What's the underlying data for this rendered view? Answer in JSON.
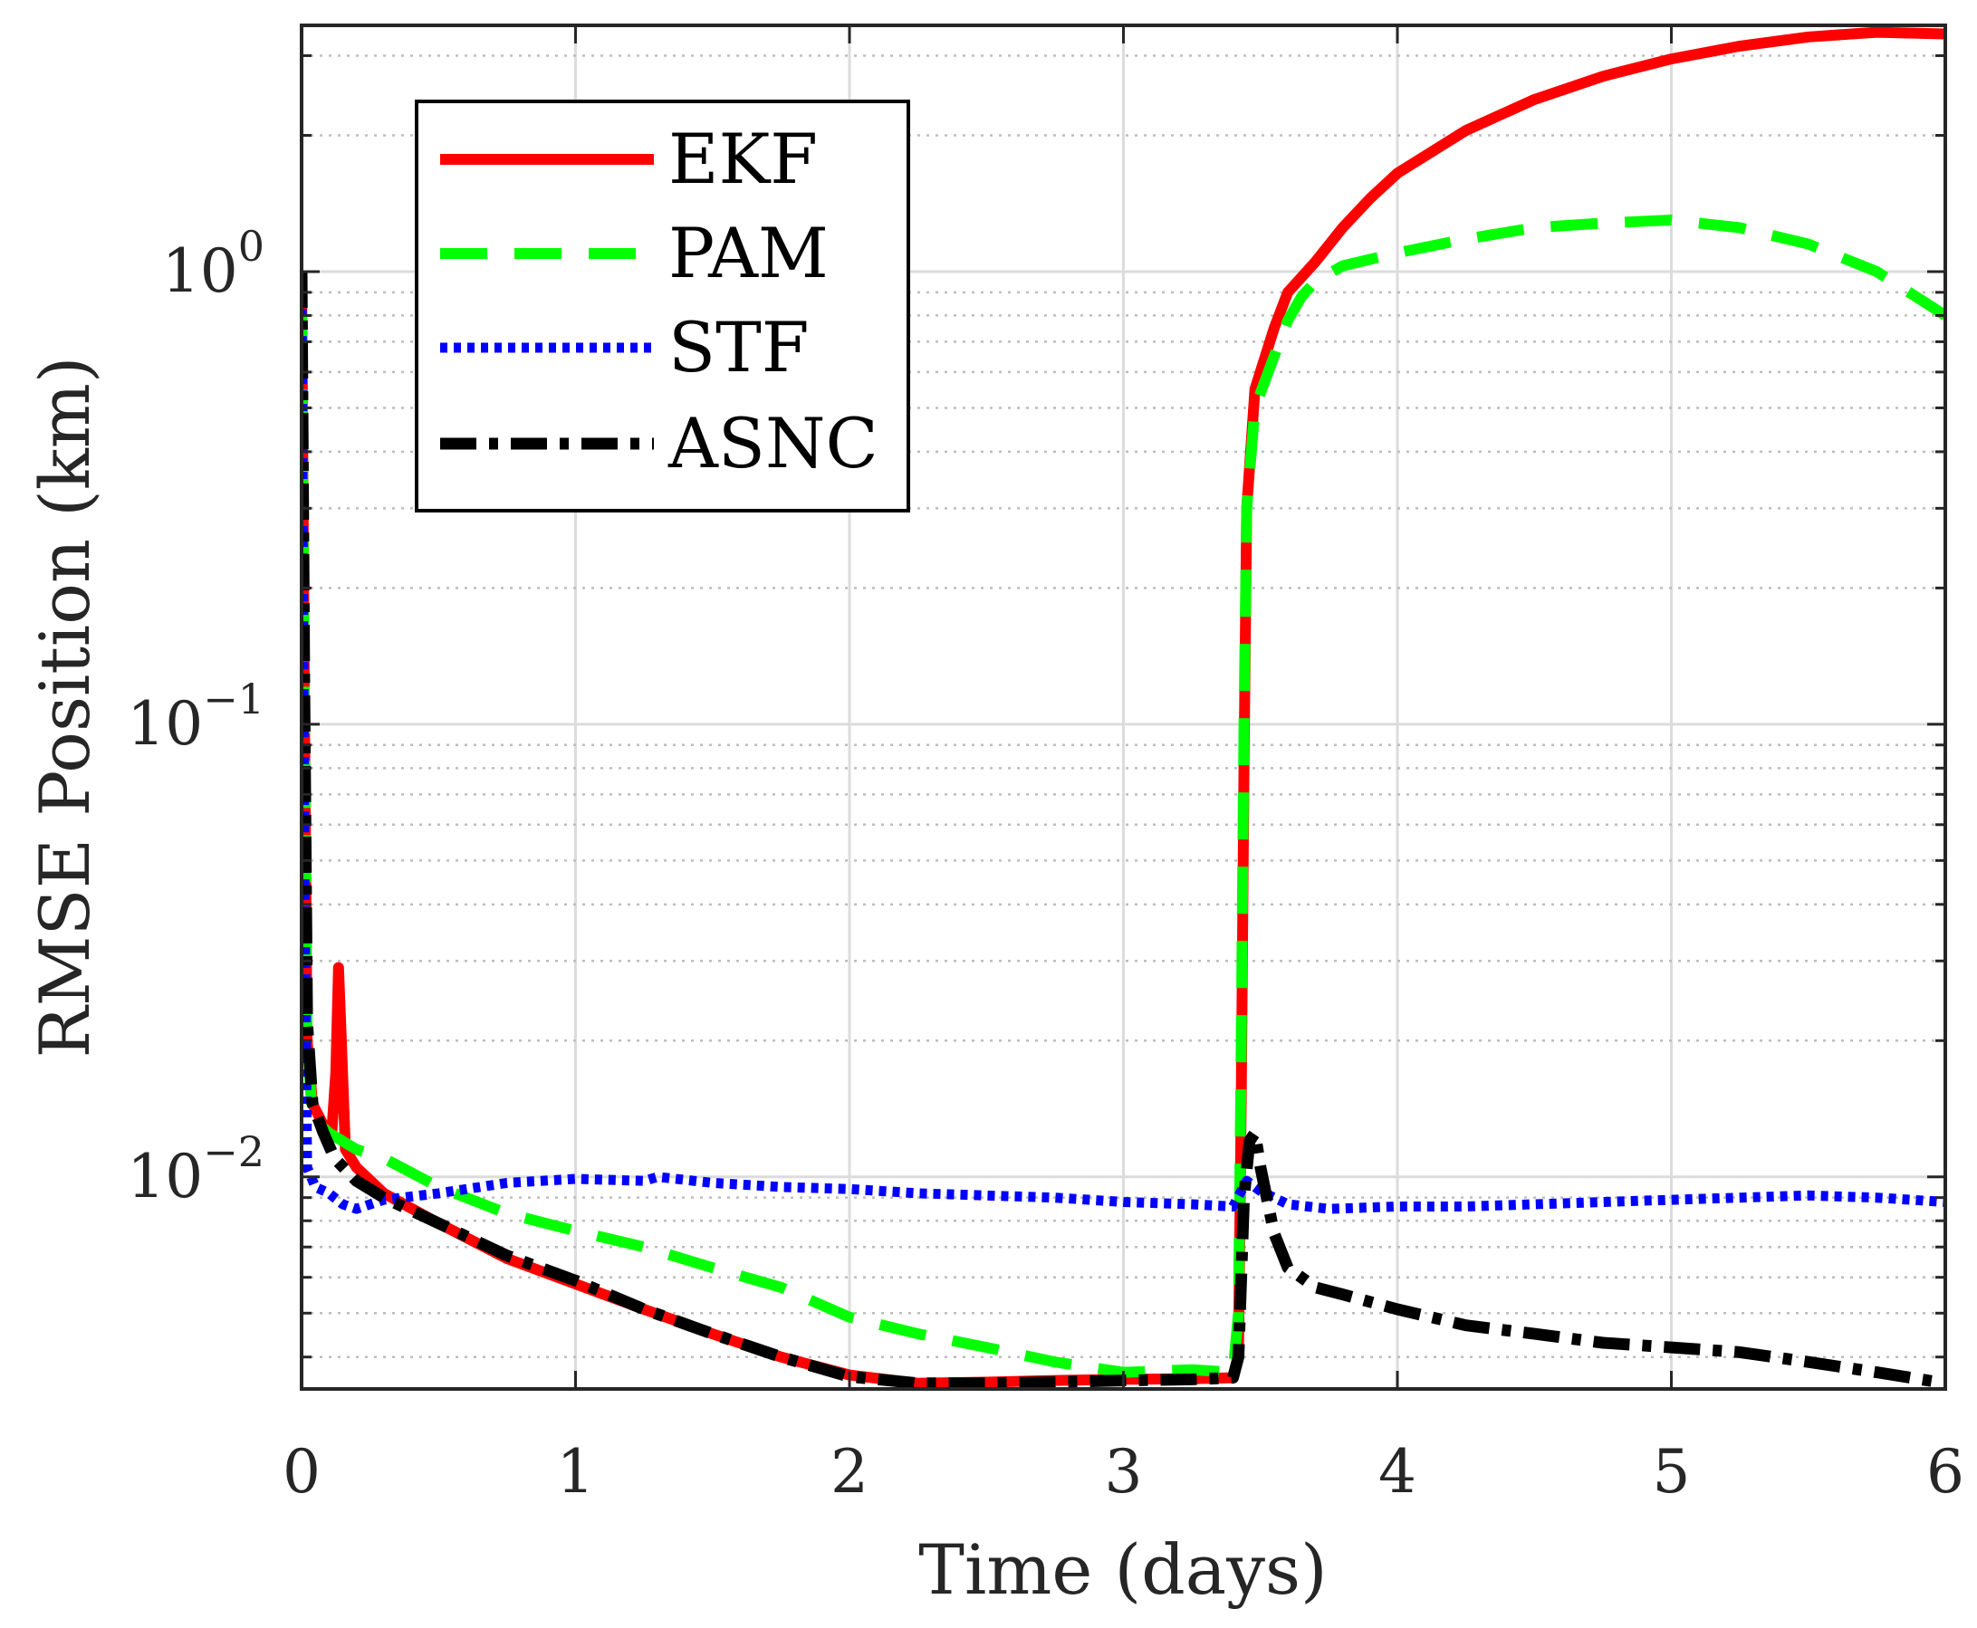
{
  "chart_data": {
    "type": "line",
    "title": "",
    "xlabel": "Time (days)",
    "ylabel": "RMSE Position (km)",
    "xlim": [
      0,
      6
    ],
    "ylim": [
      0.0034,
      3.5
    ],
    "yscale": "log",
    "grid": true,
    "minor_grid": true,
    "legend_position": "top-left",
    "x_ticks": [
      "0",
      "1",
      "2",
      "3",
      "4",
      "5",
      "6"
    ],
    "y_ticks": [
      {
        "base": "10",
        "exponent": "−2",
        "value": 0.01
      },
      {
        "base": "10",
        "exponent": "−1",
        "value": 0.1
      },
      {
        "base": "10",
        "exponent": "0",
        "value": 1
      }
    ],
    "series": [
      {
        "name": "EKF",
        "color": "#ff0000",
        "dash": "solid",
        "points": [
          [
            0,
            1.0
          ],
          [
            0.01,
            0.12
          ],
          [
            0.02,
            0.02
          ],
          [
            0.04,
            0.0145
          ],
          [
            0.08,
            0.013
          ],
          [
            0.11,
            0.0125
          ],
          [
            0.125,
            0.017
          ],
          [
            0.135,
            0.029
          ],
          [
            0.145,
            0.02
          ],
          [
            0.16,
            0.0115
          ],
          [
            0.2,
            0.0105
          ],
          [
            0.3,
            0.0092
          ],
          [
            0.5,
            0.0079
          ],
          [
            0.75,
            0.0066
          ],
          [
            1.0,
            0.0058
          ],
          [
            1.25,
            0.0051
          ],
          [
            1.5,
            0.0045
          ],
          [
            1.75,
            0.004
          ],
          [
            2.0,
            0.00365
          ],
          [
            2.25,
            0.0035
          ],
          [
            2.5,
            0.00352
          ],
          [
            2.75,
            0.00355
          ],
          [
            3.0,
            0.00357
          ],
          [
            3.25,
            0.00358
          ],
          [
            3.4,
            0.0036
          ],
          [
            3.42,
            0.004
          ],
          [
            3.43,
            0.015
          ],
          [
            3.44,
            0.08
          ],
          [
            3.45,
            0.3
          ],
          [
            3.48,
            0.55
          ],
          [
            3.55,
            0.75
          ],
          [
            3.6,
            0.9
          ],
          [
            3.7,
            1.05
          ],
          [
            3.8,
            1.25
          ],
          [
            3.9,
            1.45
          ],
          [
            4.0,
            1.65
          ],
          [
            4.25,
            2.05
          ],
          [
            4.5,
            2.4
          ],
          [
            4.75,
            2.7
          ],
          [
            5.0,
            2.95
          ],
          [
            5.25,
            3.15
          ],
          [
            5.5,
            3.3
          ],
          [
            5.75,
            3.38
          ],
          [
            6.0,
            3.35
          ]
        ]
      },
      {
        "name": "PAM",
        "color": "#00ff00",
        "dash": "dashed",
        "points": [
          [
            0,
            0.8
          ],
          [
            0.01,
            0.12
          ],
          [
            0.02,
            0.02
          ],
          [
            0.04,
            0.0135
          ],
          [
            0.1,
            0.0125
          ],
          [
            0.2,
            0.0115
          ],
          [
            0.3,
            0.011
          ],
          [
            0.5,
            0.0095
          ],
          [
            0.75,
            0.0083
          ],
          [
            1.0,
            0.0076
          ],
          [
            1.25,
            0.007
          ],
          [
            1.5,
            0.0063
          ],
          [
            1.75,
            0.0057
          ],
          [
            2.0,
            0.0049
          ],
          [
            2.25,
            0.0045
          ],
          [
            2.5,
            0.0042
          ],
          [
            2.75,
            0.0039
          ],
          [
            3.0,
            0.0037
          ],
          [
            3.25,
            0.00375
          ],
          [
            3.4,
            0.0037
          ],
          [
            3.42,
            0.005
          ],
          [
            3.43,
            0.02
          ],
          [
            3.44,
            0.1
          ],
          [
            3.45,
            0.3
          ],
          [
            3.48,
            0.5
          ],
          [
            3.55,
            0.65
          ],
          [
            3.6,
            0.78
          ],
          [
            3.65,
            0.88
          ],
          [
            3.7,
            0.95
          ],
          [
            3.8,
            1.03
          ],
          [
            4.0,
            1.1
          ],
          [
            4.25,
            1.18
          ],
          [
            4.5,
            1.25
          ],
          [
            4.75,
            1.28
          ],
          [
            5.0,
            1.3
          ],
          [
            5.25,
            1.25
          ],
          [
            5.5,
            1.15
          ],
          [
            5.75,
            1.0
          ],
          [
            6.0,
            0.8
          ]
        ]
      },
      {
        "name": "STF",
        "color": "#0000ff",
        "dash": "dotted",
        "points": [
          [
            0,
            0.95
          ],
          [
            0.01,
            0.05
          ],
          [
            0.02,
            0.0105
          ],
          [
            0.05,
            0.0095
          ],
          [
            0.1,
            0.0092
          ],
          [
            0.15,
            0.0087
          ],
          [
            0.2,
            0.0085
          ],
          [
            0.3,
            0.0089
          ],
          [
            0.5,
            0.0092
          ],
          [
            0.75,
            0.0097
          ],
          [
            1.0,
            0.0099
          ],
          [
            1.25,
            0.0098
          ],
          [
            1.3,
            0.01
          ],
          [
            1.5,
            0.0097
          ],
          [
            1.75,
            0.0095
          ],
          [
            2.0,
            0.0094
          ],
          [
            2.25,
            0.0092
          ],
          [
            2.5,
            0.0091
          ],
          [
            2.75,
            0.009
          ],
          [
            3.0,
            0.0088
          ],
          [
            3.25,
            0.0087
          ],
          [
            3.4,
            0.0086
          ],
          [
            3.45,
            0.0098
          ],
          [
            3.5,
            0.0093
          ],
          [
            3.6,
            0.0087
          ],
          [
            3.75,
            0.0085
          ],
          [
            4.0,
            0.0086
          ],
          [
            4.25,
            0.0086
          ],
          [
            4.5,
            0.0087
          ],
          [
            4.75,
            0.0088
          ],
          [
            5.0,
            0.0089
          ],
          [
            5.25,
            0.009
          ],
          [
            5.5,
            0.0091
          ],
          [
            5.75,
            0.009
          ],
          [
            6.0,
            0.0088
          ]
        ]
      },
      {
        "name": "ASNC",
        "color": "#000000",
        "dash": "dash-dot",
        "points": [
          [
            0,
            1.0
          ],
          [
            0.01,
            0.12
          ],
          [
            0.02,
            0.022
          ],
          [
            0.04,
            0.0145
          ],
          [
            0.08,
            0.0125
          ],
          [
            0.12,
            0.011
          ],
          [
            0.2,
            0.0098
          ],
          [
            0.3,
            0.009
          ],
          [
            0.5,
            0.0079
          ],
          [
            0.75,
            0.0067
          ],
          [
            1.0,
            0.0059
          ],
          [
            1.25,
            0.0051
          ],
          [
            1.5,
            0.0045
          ],
          [
            1.75,
            0.004
          ],
          [
            2.0,
            0.00362
          ],
          [
            2.25,
            0.0035
          ],
          [
            2.5,
            0.0035
          ],
          [
            2.75,
            0.00352
          ],
          [
            3.0,
            0.00355
          ],
          [
            3.25,
            0.00357
          ],
          [
            3.4,
            0.0036
          ],
          [
            3.42,
            0.004
          ],
          [
            3.44,
            0.009
          ],
          [
            3.46,
            0.012
          ],
          [
            3.48,
            0.0125
          ],
          [
            3.5,
            0.0105
          ],
          [
            3.55,
            0.0075
          ],
          [
            3.6,
            0.0063
          ],
          [
            3.7,
            0.0057
          ],
          [
            3.8,
            0.0055
          ],
          [
            4.0,
            0.0051
          ],
          [
            4.25,
            0.0047
          ],
          [
            4.5,
            0.0045
          ],
          [
            4.75,
            0.0043
          ],
          [
            5.0,
            0.0042
          ],
          [
            5.25,
            0.0041
          ],
          [
            5.5,
            0.0039
          ],
          [
            5.75,
            0.0037
          ],
          [
            6.0,
            0.0035
          ]
        ]
      }
    ]
  }
}
